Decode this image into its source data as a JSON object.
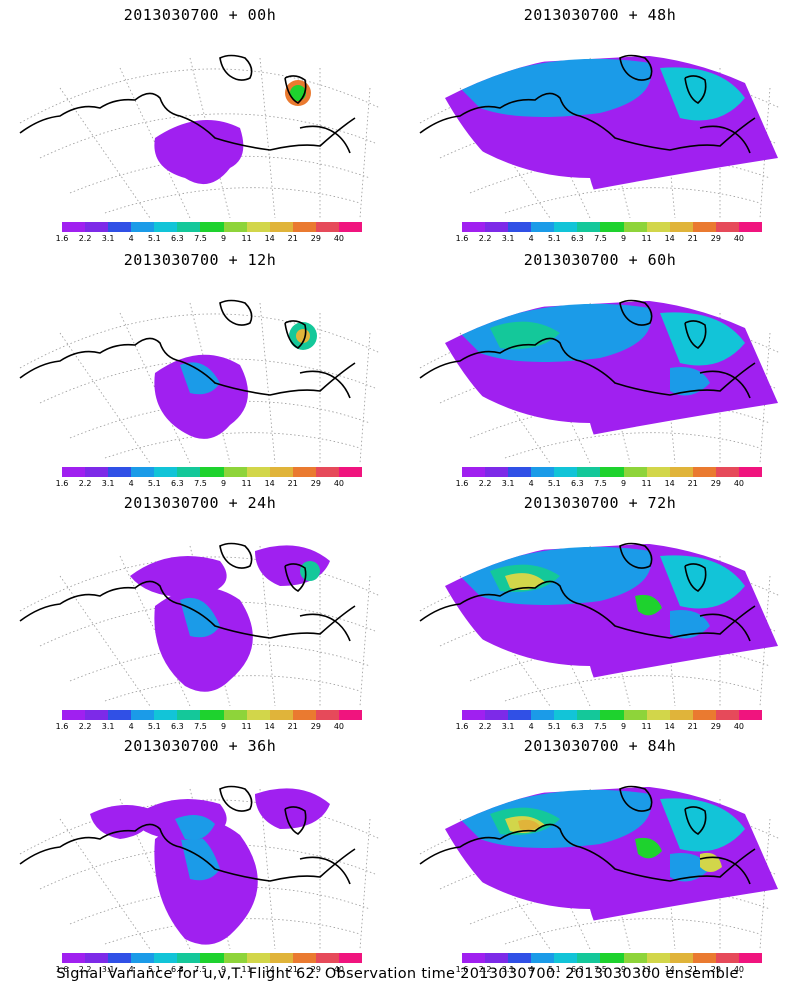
{
  "caption": "Signal Variance for u,v,T. Flight 62. Observation time 2013030700. 2013030300 ensemble.",
  "colorbar": {
    "ticks": [
      "1.6",
      "2.2",
      "3.1",
      "4",
      "5.1",
      "6.3",
      "7.5",
      "9",
      "11",
      "14",
      "21",
      "29",
      "40"
    ],
    "colors": [
      "#a020f0",
      "#7d2ae8",
      "#3050e6",
      "#1b9be8",
      "#12c4d8",
      "#14c89a",
      "#1ed22e",
      "#8ed43a",
      "#d2d64a",
      "#e0b43a",
      "#ea7a30",
      "#e64a5a",
      "#f0147e"
    ]
  },
  "panels": [
    {
      "title": "2013030700 + 00h",
      "intensity": 0
    },
    {
      "title": "2013030700 + 12h",
      "intensity": 1
    },
    {
      "title": "2013030700 + 24h",
      "intensity": 2
    },
    {
      "title": "2013030700 + 36h",
      "intensity": 3
    },
    {
      "title": "2013030700 + 48h",
      "intensity": 4
    },
    {
      "title": "2013030700 + 60h",
      "intensity": 5
    },
    {
      "title": "2013030700 + 72h",
      "intensity": 6
    },
    {
      "title": "2013030700 + 84h",
      "intensity": 7
    }
  ]
}
